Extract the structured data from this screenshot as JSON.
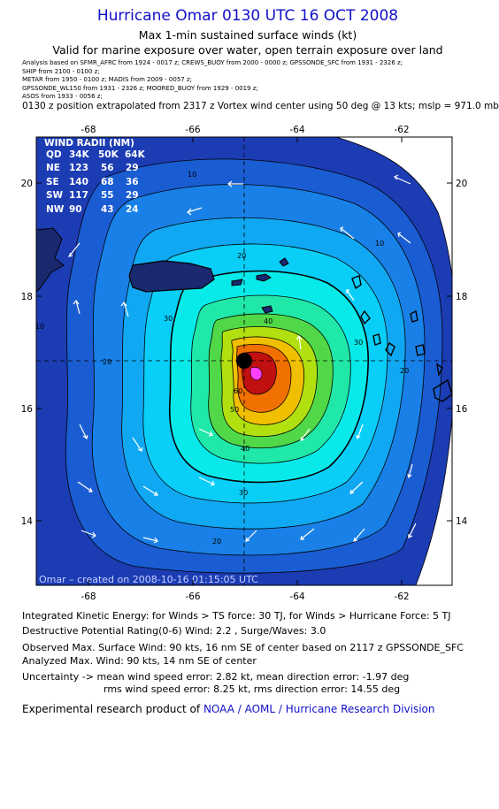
{
  "title": "Hurricane Omar 0130 UTC 16 OCT 2008",
  "subtitle1": "Max 1-min sustained surface winds (kt)",
  "subtitle2": "Valid for marine exposure over water, open terrain exposure over land",
  "sources": [
    "Analysis based on SFMR_AFRC from 1924 - 0017 z;  CREWS_BUOY from 2000 - 0000 z;  GPSSONDE_SFC from 1931 - 2326 z;",
    "SHIP from 2100 - 0100 z;",
    "METAR from 1950 - 0100 z;  MADIS from 2009 - 0057 z;",
    "GPSSONDE_WL150 from 1931 - 2326 z;  MOORED_BUOY from 1929 - 0019 z;",
    "ASOS from 1933 - 0056 z;"
  ],
  "position_note": "0130 z position extrapolated from 2317 z Vortex wind center using 50 deg @ 13 kts; mslp = 971.0 mb",
  "axes": {
    "lon_ticks": [
      "-68",
      "-66",
      "-64",
      "-62"
    ],
    "lat_ticks": [
      "20",
      "18",
      "16",
      "14"
    ]
  },
  "wind_radii": {
    "header": "WIND RADII (NM)",
    "columns": [
      "QD",
      "34K",
      "50K",
      "64K"
    ],
    "rows": [
      [
        "NE",
        "123",
        "56",
        "29"
      ],
      [
        "SE",
        "140",
        "68",
        "36"
      ],
      [
        "SW",
        "117",
        "55",
        "29"
      ],
      [
        "NW",
        "90",
        "43",
        "24"
      ]
    ]
  },
  "contour_labels": [
    "10",
    "20",
    "30",
    "40",
    "50",
    "60"
  ],
  "map_footer": "Omar – created on 2008-10-16 01:15:05 UTC",
  "stats": {
    "ike": "Integrated Kinetic Energy:  for Winds > TS force: 30 TJ,  for Winds > Hurricane Force: 5 TJ",
    "dpr": "Destructive Potential Rating(0-6)   Wind: 2.2 , Surge/Waves: 3.0",
    "observed": "Observed Max. Surface Wind: 90 kts, 16 nm SE of center based on 2117 z GPSSONDE_SFC",
    "analyzed": "Analyzed Max. Wind: 90 kts, 14 nm SE of center",
    "uncert1": "Uncertainty -> mean wind speed error: 2.82 kt,   mean direction error:  -1.97 deg",
    "uncert2": "rms wind speed error: 8.25 kt,   rms direction error: 14.55 deg"
  },
  "credit_prefix": "Experimental research product of",
  "credit_org": "NOAA / AOML / Hurricane Research Division",
  "colors": {
    "title": "#1010c8",
    "outer": "#1c3cb4",
    "ring2": "#1a5cd2",
    "ring3": "#1880e6",
    "ring4": "#10a8f2",
    "ring5": "#08cef8",
    "ring6": "#08eaea",
    "ring7": "#20e8a8",
    "ring8": "#50d848",
    "ring9": "#b0e010",
    "ring10": "#f0c000",
    "ring11": "#f07000",
    "core": "#c01010",
    "land": "#1a2870"
  }
}
